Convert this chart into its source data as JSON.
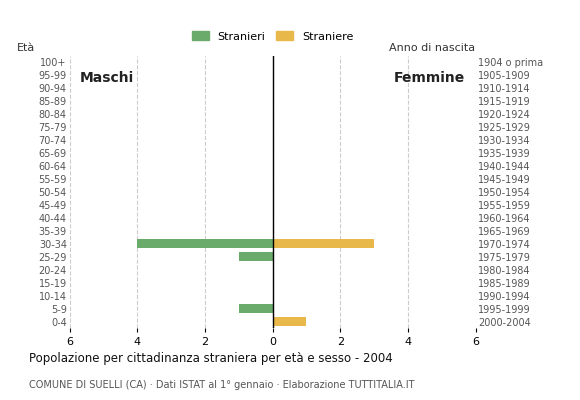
{
  "age_groups": [
    "100+",
    "95-99",
    "90-94",
    "85-89",
    "80-84",
    "75-79",
    "70-74",
    "65-69",
    "60-64",
    "55-59",
    "50-54",
    "45-49",
    "40-44",
    "35-39",
    "30-34",
    "25-29",
    "20-24",
    "15-19",
    "10-14",
    "5-9",
    "0-4"
  ],
  "birth_years": [
    "1904 o prima",
    "1905-1909",
    "1910-1914",
    "1915-1919",
    "1920-1924",
    "1925-1929",
    "1930-1934",
    "1935-1939",
    "1940-1944",
    "1945-1949",
    "1950-1954",
    "1955-1959",
    "1960-1964",
    "1965-1969",
    "1970-1974",
    "1975-1979",
    "1980-1984",
    "1985-1989",
    "1990-1994",
    "1995-1999",
    "2000-2004"
  ],
  "males_stranieri": [
    0,
    0,
    0,
    0,
    0,
    0,
    0,
    0,
    0,
    0,
    0,
    0,
    0,
    0,
    4,
    1,
    0,
    0,
    0,
    1,
    0
  ],
  "females_straniere": [
    0,
    0,
    0,
    0,
    0,
    0,
    0,
    0,
    0,
    0,
    0,
    0,
    0,
    0,
    3,
    0,
    0,
    0,
    0,
    0,
    1
  ],
  "color_males": "#6aaa6a",
  "color_females": "#e8b84b",
  "title": "Popolazione per cittadinanza straniera per età e sesso - 2004",
  "subtitle": "COMUNE DI SUELLI (CA) · Dati ISTAT al 1° gennaio · Elaborazione TUTTITALIA.IT",
  "legend_males": "Stranieri",
  "legend_females": "Straniere",
  "label_maschi": "Maschi",
  "label_femmine": "Femmine",
  "ylabel_left": "Età",
  "ylabel_right": "Anno di nascita",
  "xlim": 6,
  "background_color": "#ffffff",
  "grid_color": "#cccccc"
}
